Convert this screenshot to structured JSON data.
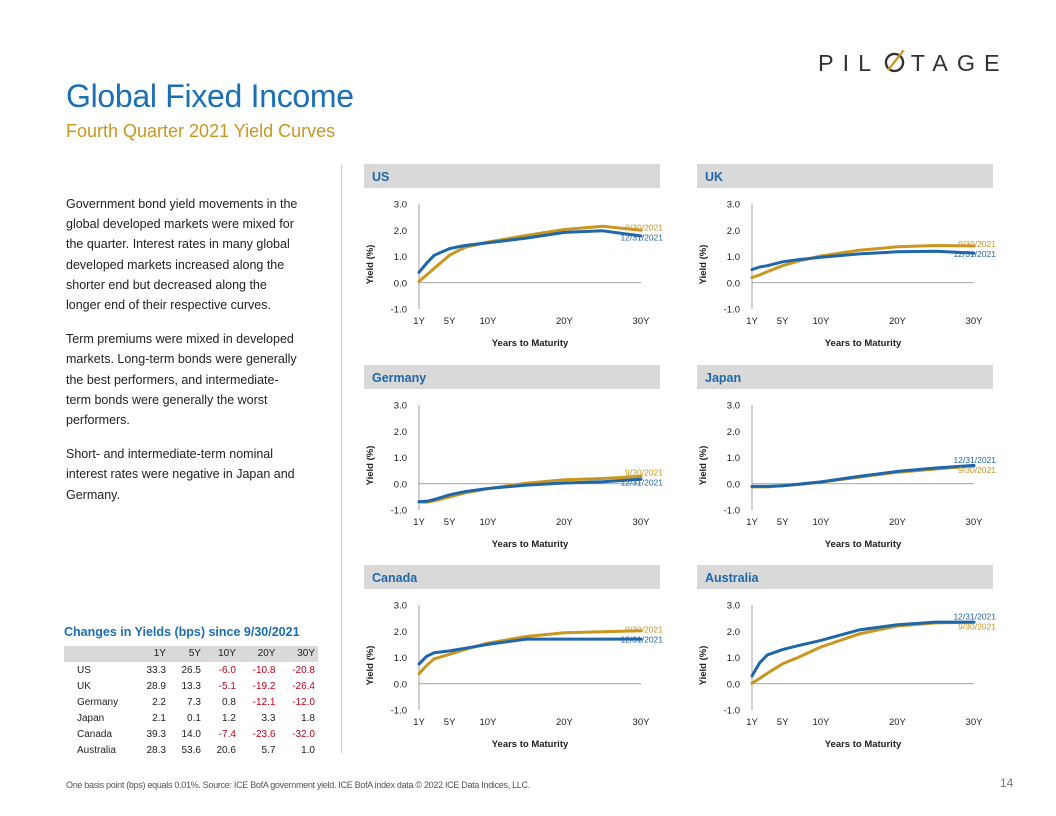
{
  "header": {
    "brand": "PILOTAGE",
    "title": "Global Fixed Income",
    "subtitle": "Fourth Quarter 2021 Yield Curves"
  },
  "commentary": {
    "paragraphs": [
      "Government bond yield movements in the global developed markets were mixed for the quarter. Interest rates in many global developed markets increased along the shorter end but decreased along the longer end of their respective curves.",
      "Term premiums were mixed in developed markets. Long-term bonds were generally the best performers, and intermediate-term bonds were generally the worst performers.",
      "Short- and intermediate-term nominal interest rates were negative in Japan and Germany."
    ]
  },
  "changes_table": {
    "title": "Changes in Yields (bps) since 9/30/2021",
    "columns": [
      "",
      "1Y",
      "5Y",
      "10Y",
      "20Y",
      "30Y"
    ],
    "rows": [
      {
        "country": "US",
        "values": [
          "33.3",
          "26.5",
          "-6.0",
          "-10.8",
          "-20.8"
        ]
      },
      {
        "country": "UK",
        "values": [
          "28.9",
          "13.3",
          "-5.1",
          "-19.2",
          "-26.4"
        ]
      },
      {
        "country": "Germany",
        "values": [
          "2.2",
          "7.3",
          "0.8",
          "-12.1",
          "-12.0"
        ]
      },
      {
        "country": "Japan",
        "values": [
          "2.1",
          "0.1",
          "1.2",
          "3.3",
          "1.8"
        ]
      },
      {
        "country": "Canada",
        "values": [
          "39.3",
          "14.0",
          "-7.4",
          "-23.6",
          "-32.0"
        ]
      },
      {
        "country": "Australia",
        "values": [
          "28.3",
          "53.6",
          "20.6",
          "5.7",
          "1.0"
        ]
      }
    ]
  },
  "colors": {
    "current": "#1f67a8",
    "prior": "#c9971f",
    "panel_header": "#d9d9d9",
    "negative": "#c0001a"
  },
  "chart_data": [
    {
      "type": "line",
      "title": "US",
      "xlabel": "Years to Maturity",
      "ylabel": "Yield (%)",
      "ylim": [
        -1.0,
        3.0
      ],
      "yticks": [
        "3.0",
        "2.0",
        "1.0",
        "0.0",
        "-1.0"
      ],
      "x": [
        1,
        2,
        3,
        5,
        7,
        10,
        15,
        20,
        25,
        30
      ],
      "xticklabels": [
        "1Y",
        "5Y",
        "10Y",
        "20Y",
        "30Y"
      ],
      "series": [
        {
          "name": "12/31/2021",
          "values": [
            0.4,
            0.75,
            1.05,
            1.3,
            1.42,
            1.52,
            1.7,
            1.92,
            1.98,
            1.78
          ]
        },
        {
          "name": "9/30/2021",
          "values": [
            0.05,
            0.3,
            0.55,
            1.05,
            1.35,
            1.55,
            1.8,
            2.03,
            2.15,
            2.0
          ]
        }
      ]
    },
    {
      "type": "line",
      "title": "UK",
      "xlabel": "Years to Maturity",
      "ylabel": "Yield (%)",
      "ylim": [
        -1.0,
        3.0
      ],
      "yticks": [
        "3.0",
        "2.0",
        "1.0",
        "0.0",
        "-1.0"
      ],
      "x": [
        1,
        2,
        3,
        5,
        7,
        10,
        15,
        20,
        25,
        30
      ],
      "xticklabels": [
        "1Y",
        "5Y",
        "10Y",
        "20Y",
        "30Y"
      ],
      "series": [
        {
          "name": "12/31/2021",
          "values": [
            0.5,
            0.6,
            0.65,
            0.8,
            0.88,
            0.97,
            1.1,
            1.18,
            1.2,
            1.13
          ]
        },
        {
          "name": "9/30/2021",
          "values": [
            0.2,
            0.3,
            0.42,
            0.65,
            0.82,
            1.02,
            1.24,
            1.37,
            1.42,
            1.4
          ]
        }
      ]
    },
    {
      "type": "line",
      "title": "Germany",
      "xlabel": "Years to Maturity",
      "ylabel": "Yield (%)",
      "ylim": [
        -1.0,
        3.0
      ],
      "yticks": [
        "3.0",
        "2.0",
        "1.0",
        "0.0",
        "-1.0"
      ],
      "x": [
        1,
        2,
        3,
        5,
        7,
        10,
        15,
        20,
        25,
        30
      ],
      "xticklabels": [
        "1Y",
        "5Y",
        "10Y",
        "20Y",
        "30Y"
      ],
      "series": [
        {
          "name": "12/31/2021",
          "values": [
            -0.68,
            -0.67,
            -0.6,
            -0.42,
            -0.3,
            -0.18,
            -0.05,
            0.03,
            0.08,
            0.17
          ]
        },
        {
          "name": "9/30/2021",
          "values": [
            -0.7,
            -0.7,
            -0.65,
            -0.5,
            -0.35,
            -0.19,
            0.02,
            0.15,
            0.2,
            0.28
          ]
        }
      ]
    },
    {
      "type": "line",
      "title": "Japan",
      "xlabel": "Years to Maturity",
      "ylabel": "Yield (%)",
      "ylim": [
        -1.0,
        3.0
      ],
      "yticks": [
        "3.0",
        "2.0",
        "1.0",
        "0.0",
        "-1.0"
      ],
      "x": [
        1,
        2,
        3,
        5,
        7,
        10,
        15,
        20,
        25,
        30
      ],
      "xticklabels": [
        "1Y",
        "5Y",
        "10Y",
        "20Y",
        "30Y"
      ],
      "series": [
        {
          "name": "12/31/2021",
          "values": [
            -0.1,
            -0.1,
            -0.1,
            -0.08,
            -0.02,
            0.07,
            0.28,
            0.47,
            0.6,
            0.7
          ]
        },
        {
          "name": "9/30/2021",
          "values": [
            -0.12,
            -0.12,
            -0.12,
            -0.08,
            -0.03,
            0.06,
            0.25,
            0.44,
            0.56,
            0.68
          ]
        }
      ]
    },
    {
      "type": "line",
      "title": "Canada",
      "xlabel": "Years to Maturity",
      "ylabel": "Yield (%)",
      "ylim": [
        -1.0,
        3.0
      ],
      "yticks": [
        "3.0",
        "2.0",
        "1.0",
        "0.0",
        "-1.0"
      ],
      "x": [
        1,
        2,
        3,
        5,
        7,
        10,
        15,
        20,
        25,
        30
      ],
      "xticklabels": [
        "1Y",
        "5Y",
        "10Y",
        "20Y",
        "30Y"
      ],
      "series": [
        {
          "name": "12/31/2021",
          "values": [
            0.75,
            1.05,
            1.18,
            1.25,
            1.35,
            1.5,
            1.7,
            1.7,
            1.7,
            1.7
          ]
        },
        {
          "name": "9/30/2021",
          "values": [
            0.38,
            0.7,
            0.95,
            1.12,
            1.3,
            1.55,
            1.8,
            1.94,
            1.98,
            2.02
          ]
        }
      ]
    },
    {
      "type": "line",
      "title": "Australia",
      "xlabel": "Years to Maturity",
      "ylabel": "Yield (%)",
      "ylim": [
        -1.0,
        3.0
      ],
      "yticks": [
        "3.0",
        "2.0",
        "1.0",
        "0.0",
        "-1.0"
      ],
      "x": [
        1,
        2,
        3,
        5,
        7,
        10,
        15,
        20,
        25,
        30
      ],
      "xticklabels": [
        "1Y",
        "5Y",
        "10Y",
        "20Y",
        "30Y"
      ],
      "series": [
        {
          "name": "12/31/2021",
          "values": [
            0.3,
            0.8,
            1.1,
            1.3,
            1.45,
            1.65,
            2.05,
            2.25,
            2.35,
            2.35
          ]
        },
        {
          "name": "9/30/2021",
          "values": [
            0.02,
            0.2,
            0.4,
            0.76,
            1.0,
            1.4,
            1.9,
            2.2,
            2.32,
            2.34
          ]
        }
      ]
    }
  ],
  "footer": {
    "note": "One basis point (bps) equals 0.01%. Source: ICE BofA government yield. ICE BofA index data © 2022 ICE Data Indices, LLC.",
    "page_number": "14"
  }
}
